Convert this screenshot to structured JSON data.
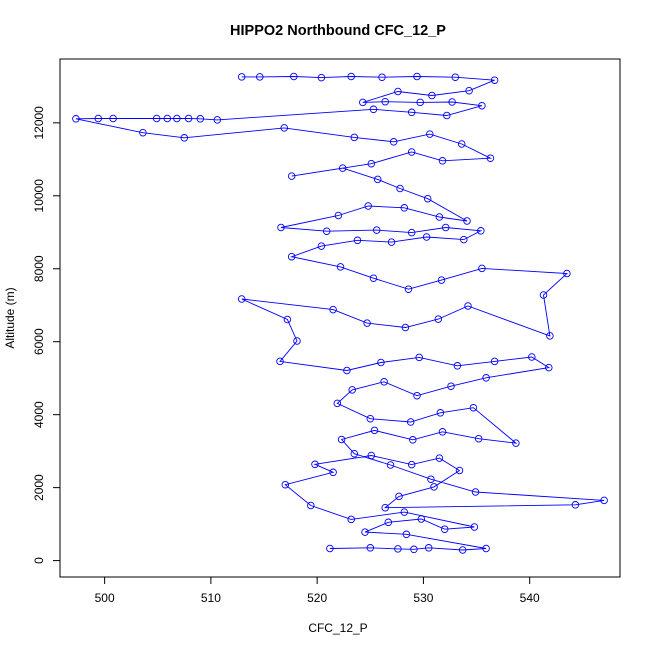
{
  "chart_data": {
    "type": "scatter",
    "title": "HIPPO2 Northbound CFC_12_P",
    "xlabel": "CFC_12_P",
    "ylabel": "Altitude (m)",
    "xlim": [
      495.8,
      548.5
    ],
    "ylim": [
      -450,
      13750
    ],
    "xticks": [
      500,
      510,
      520,
      530,
      540
    ],
    "xtick_labels": [
      "500",
      "510",
      "520",
      "530",
      "540"
    ],
    "yticks": [
      0,
      2000,
      4000,
      6000,
      8000,
      10000,
      12000
    ],
    "ytick_labels": [
      "0",
      "2000",
      "4000",
      "6000",
      "8000",
      "10000",
      "12000"
    ],
    "grid": false,
    "legend": "none",
    "style": {
      "marker": "open-circle",
      "line": true,
      "color": "#0000ff"
    },
    "series": [
      {
        "points": [
          [
            521.2,
            330
          ],
          [
            525.0,
            350
          ],
          [
            527.6,
            320
          ],
          [
            529.1,
            310
          ],
          [
            530.5,
            350
          ],
          [
            533.7,
            290
          ],
          [
            535.9,
            330
          ],
          [
            528.4,
            720
          ],
          [
            524.5,
            780
          ],
          [
            526.7,
            1050
          ],
          [
            529.8,
            1140
          ],
          [
            532.0,
            860
          ],
          [
            534.8,
            920
          ],
          [
            528.2,
            1330
          ],
          [
            523.2,
            1130
          ],
          [
            519.4,
            1510
          ],
          [
            517.0,
            2080
          ],
          [
            521.5,
            2420
          ],
          [
            519.8,
            2640
          ],
          [
            525.1,
            2880
          ],
          [
            528.9,
            2630
          ],
          [
            531.5,
            2810
          ],
          [
            533.4,
            2470
          ],
          [
            531.0,
            2020
          ],
          [
            527.7,
            1760
          ],
          [
            526.4,
            1450
          ],
          [
            544.3,
            1530
          ],
          [
            547.0,
            1650
          ],
          [
            534.9,
            1880
          ],
          [
            530.7,
            2230
          ],
          [
            526.9,
            2620
          ],
          [
            523.5,
            2930
          ],
          [
            522.3,
            3320
          ],
          [
            525.4,
            3570
          ],
          [
            529.0,
            3310
          ],
          [
            531.8,
            3530
          ],
          [
            535.2,
            3340
          ],
          [
            538.7,
            3220
          ],
          [
            534.7,
            4190
          ],
          [
            531.6,
            4050
          ],
          [
            528.8,
            3800
          ],
          [
            525.0,
            3890
          ],
          [
            521.9,
            4310
          ],
          [
            523.3,
            4680
          ],
          [
            526.3,
            4900
          ],
          [
            529.4,
            4520
          ],
          [
            532.6,
            4780
          ],
          [
            535.9,
            5010
          ],
          [
            541.8,
            5290
          ],
          [
            540.2,
            5580
          ],
          [
            536.7,
            5460
          ],
          [
            533.2,
            5340
          ],
          [
            529.6,
            5570
          ],
          [
            526.0,
            5430
          ],
          [
            522.8,
            5210
          ],
          [
            516.5,
            5460
          ],
          [
            518.1,
            6020
          ],
          [
            517.2,
            6610
          ],
          [
            512.9,
            7170
          ],
          [
            521.5,
            6880
          ],
          [
            524.7,
            6510
          ],
          [
            528.3,
            6390
          ],
          [
            531.4,
            6620
          ],
          [
            534.2,
            6980
          ],
          [
            541.9,
            6160
          ],
          [
            541.3,
            7280
          ],
          [
            543.5,
            7870
          ],
          [
            535.5,
            8010
          ],
          [
            531.7,
            7690
          ],
          [
            528.6,
            7440
          ],
          [
            525.3,
            7740
          ],
          [
            522.2,
            8050
          ],
          [
            517.6,
            8330
          ],
          [
            520.4,
            8620
          ],
          [
            523.8,
            8780
          ],
          [
            527.0,
            8730
          ],
          [
            530.3,
            8870
          ],
          [
            533.8,
            8800
          ],
          [
            535.4,
            9040
          ],
          [
            532.1,
            9130
          ],
          [
            528.9,
            8990
          ],
          [
            525.6,
            9060
          ],
          [
            520.9,
            9030
          ],
          [
            516.6,
            9130
          ],
          [
            522.0,
            9460
          ],
          [
            524.8,
            9720
          ],
          [
            528.2,
            9670
          ],
          [
            531.5,
            9420
          ],
          [
            534.1,
            9310
          ],
          [
            530.4,
            9920
          ],
          [
            527.8,
            10200
          ],
          [
            525.7,
            10450
          ],
          [
            522.4,
            10760
          ],
          [
            517.6,
            10540
          ],
          [
            525.1,
            10880
          ],
          [
            528.9,
            11200
          ],
          [
            531.8,
            10960
          ],
          [
            536.3,
            11030
          ],
          [
            533.6,
            11420
          ],
          [
            530.6,
            11690
          ],
          [
            527.2,
            11480
          ],
          [
            523.5,
            11600
          ],
          [
            516.9,
            11860
          ],
          [
            507.5,
            11590
          ],
          [
            503.6,
            11730
          ],
          [
            497.3,
            12110
          ],
          [
            499.4,
            12120
          ],
          [
            500.8,
            12120
          ],
          [
            504.9,
            12120
          ],
          [
            505.9,
            12120
          ],
          [
            506.8,
            12120
          ],
          [
            507.9,
            12120
          ],
          [
            509.0,
            12110
          ],
          [
            510.6,
            12080
          ],
          [
            525.3,
            12370
          ],
          [
            528.9,
            12290
          ],
          [
            532.2,
            12200
          ],
          [
            535.5,
            12470
          ],
          [
            532.7,
            12570
          ],
          [
            529.7,
            12560
          ],
          [
            526.4,
            12580
          ],
          [
            524.3,
            12560
          ],
          [
            527.6,
            12860
          ],
          [
            530.8,
            12750
          ],
          [
            534.3,
            12880
          ],
          [
            536.7,
            13170
          ],
          [
            533.0,
            13250
          ],
          [
            529.4,
            13270
          ],
          [
            526.1,
            13250
          ],
          [
            523.2,
            13270
          ],
          [
            520.4,
            13240
          ],
          [
            517.8,
            13270
          ],
          [
            514.6,
            13260
          ],
          [
            512.9,
            13260
          ]
        ]
      }
    ]
  }
}
